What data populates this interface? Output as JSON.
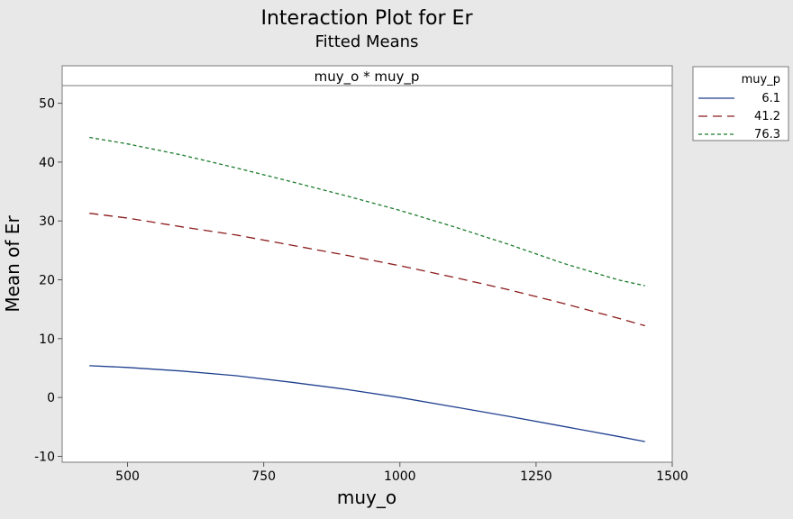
{
  "chart_data": {
    "type": "line",
    "title": "Interaction Plot for Er",
    "subtitle": "Fitted Means",
    "panel_label": "muy_o * muy_p",
    "xlabel": "muy_o",
    "ylabel": "Mean of Er",
    "xlim": [
      380,
      1500
    ],
    "ylim": [
      -11,
      53
    ],
    "xticks": [
      500,
      750,
      1000,
      1250,
      1500
    ],
    "xtick_labels": [
      "500",
      "750",
      "1000",
      "1250",
      "1500"
    ],
    "yticks": [
      -10,
      0,
      10,
      20,
      30,
      40,
      50
    ],
    "ytick_labels": [
      "-10",
      "0",
      "10",
      "20",
      "30",
      "40",
      "50"
    ],
    "grid": false,
    "legend": {
      "title": "muy_p",
      "placement": "outside-right"
    },
    "x": [
      430,
      500,
      600,
      700,
      800,
      900,
      1000,
      1100,
      1200,
      1300,
      1400,
      1450
    ],
    "series": [
      {
        "name": "6.1",
        "color": "#1f3f8f",
        "style": "solid",
        "values": [
          5.4,
          5.1,
          4.5,
          3.7,
          2.6,
          1.4,
          0.0,
          -1.6,
          -3.2,
          -4.9,
          -6.6,
          -7.5
        ]
      },
      {
        "name": "41.2",
        "color": "#8b1a1a",
        "style": "dashed",
        "values": [
          31.3,
          30.5,
          29.0,
          27.6,
          25.9,
          24.2,
          22.4,
          20.4,
          18.3,
          16.0,
          13.5,
          12.2
        ]
      },
      {
        "name": "76.3",
        "color": "#1a7a2a",
        "style": "dotted",
        "values": [
          44.2,
          43.1,
          41.2,
          39.0,
          36.7,
          34.3,
          31.8,
          29.0,
          26.0,
          22.8,
          20.0,
          19.0
        ]
      }
    ]
  }
}
